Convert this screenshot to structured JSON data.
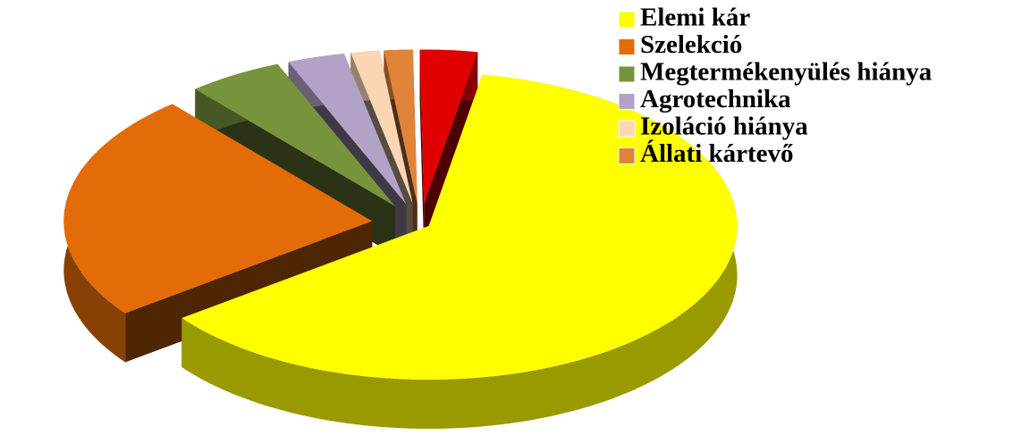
{
  "chart_data": {
    "type": "pie",
    "categories": [
      "Elemi kár",
      "Szelekció",
      "Megtermékenyülés hiánya",
      "Agrotechnika",
      "Izoláció hiánya",
      "Állati kártevő",
      null
    ],
    "values": [
      62,
      24,
      5,
      3,
      1.5,
      1.5,
      3
    ],
    "colors": [
      "#ffff00",
      "#e36c09",
      "#77933c",
      "#b3a2c7",
      "#fcd5b5",
      "#e0843a",
      "#e00000"
    ],
    "legend": "right"
  }
}
